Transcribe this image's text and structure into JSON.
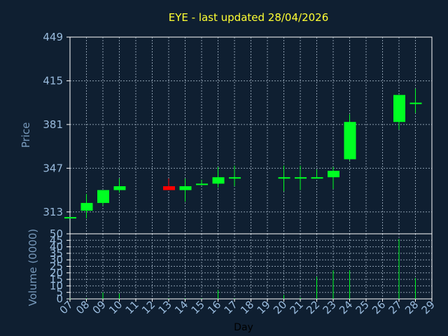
{
  "title": "EYE - last updated 28/04/2026",
  "colors": {
    "background": "#0f1f31",
    "title": "#ffff33",
    "axis_label": "#7799bb",
    "tick_label": "#99bbdd",
    "frame": "#ffffff",
    "grid": "#8899aa",
    "up": "#00ff22",
    "down": "#ff0000"
  },
  "chart_data": [
    {
      "type": "candlestick",
      "title": "EYE - last updated 28/04/2026",
      "ylabel": "Price",
      "ylim": [
        296,
        449
      ],
      "yticks": [
        313,
        347,
        381,
        415,
        449
      ],
      "categories": [
        "07",
        "08",
        "09",
        "10",
        "11",
        "12",
        "13",
        "14",
        "15",
        "16",
        "17",
        "18",
        "19",
        "20",
        "21",
        "22",
        "23",
        "24",
        "25",
        "26",
        "27",
        "28",
        "29"
      ],
      "xlim": [
        7,
        29
      ],
      "grid": true,
      "candles": [
        {
          "day": 7,
          "open": 309,
          "high": 309,
          "low": 309,
          "close": 309,
          "direction": "up"
        },
        {
          "day": 8,
          "open": 314,
          "high": 327,
          "low": 308,
          "close": 320,
          "direction": "up"
        },
        {
          "day": 9,
          "open": 320,
          "high": 330,
          "low": 318,
          "close": 330,
          "direction": "up"
        },
        {
          "day": 10,
          "open": 330,
          "high": 339,
          "low": 328,
          "close": 333,
          "direction": "up"
        },
        {
          "day": 13,
          "open": 333,
          "high": 339,
          "low": 330,
          "close": 330,
          "direction": "down"
        },
        {
          "day": 14,
          "open": 330,
          "high": 339,
          "low": 321,
          "close": 333,
          "direction": "up"
        },
        {
          "day": 15,
          "open": 335,
          "high": 338,
          "low": 334,
          "close": 335,
          "direction": "up"
        },
        {
          "day": 16,
          "open": 335,
          "high": 348,
          "low": 332,
          "close": 340,
          "direction": "up"
        },
        {
          "day": 17,
          "open": 340,
          "high": 349,
          "low": 333,
          "close": 340,
          "direction": "up"
        },
        {
          "day": 20,
          "open": 340,
          "high": 349,
          "low": 329,
          "close": 340,
          "direction": "up"
        },
        {
          "day": 21,
          "open": 340,
          "high": 349,
          "low": 330,
          "close": 340,
          "direction": "up"
        },
        {
          "day": 22,
          "open": 340,
          "high": 346,
          "low": 339,
          "close": 340,
          "direction": "up"
        },
        {
          "day": 23,
          "open": 340,
          "high": 348,
          "low": 331,
          "close": 345,
          "direction": "up"
        },
        {
          "day": 24,
          "open": 354,
          "high": 389,
          "low": 353,
          "close": 383,
          "direction": "up"
        },
        {
          "day": 27,
          "open": 383,
          "high": 404,
          "low": 377,
          "close": 404,
          "direction": "up"
        },
        {
          "day": 28,
          "open": 398,
          "high": 409,
          "low": 390,
          "close": 398,
          "direction": "up"
        }
      ]
    },
    {
      "type": "bar",
      "xlabel": "Day",
      "ylabel": "Volume (0000)",
      "ylim": [
        0,
        50
      ],
      "yticks": [
        0,
        5,
        10,
        15,
        20,
        25,
        30,
        35,
        40,
        45,
        50
      ],
      "categories": [
        "07",
        "08",
        "09",
        "10",
        "11",
        "12",
        "13",
        "14",
        "15",
        "16",
        "17",
        "18",
        "19",
        "20",
        "21",
        "22",
        "23",
        "24",
        "25",
        "26",
        "27",
        "28",
        "29"
      ],
      "xlim": [
        7,
        29
      ],
      "grid": true,
      "bars": [
        {
          "day": 7,
          "value": 0.5
        },
        {
          "day": 8,
          "value": 0.5
        },
        {
          "day": 9,
          "value": 5
        },
        {
          "day": 10,
          "value": 4
        },
        {
          "day": 13,
          "value": 0.5
        },
        {
          "day": 14,
          "value": 0.5
        },
        {
          "day": 15,
          "value": 0.5
        },
        {
          "day": 16,
          "value": 7
        },
        {
          "day": 17,
          "value": 0.5
        },
        {
          "day": 20,
          "value": 3
        },
        {
          "day": 21,
          "value": 1
        },
        {
          "day": 22,
          "value": 17
        },
        {
          "day": 23,
          "value": 22
        },
        {
          "day": 24,
          "value": 22
        },
        {
          "day": 27,
          "value": 46
        },
        {
          "day": 28,
          "value": 16
        }
      ]
    }
  ]
}
